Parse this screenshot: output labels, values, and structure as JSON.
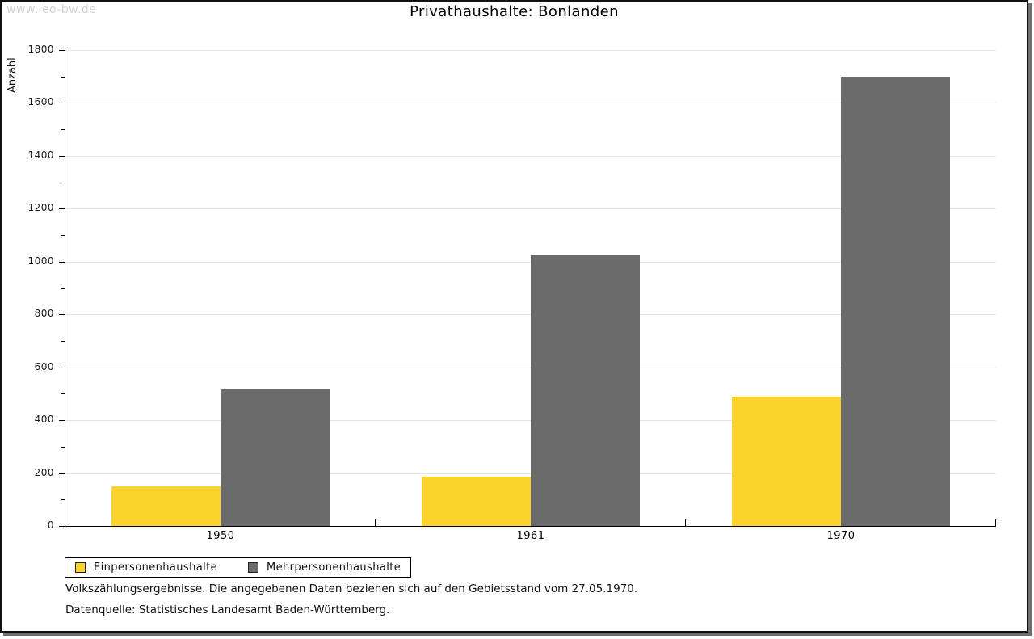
{
  "watermark": "www.leo-bw.de",
  "chart_data": {
    "type": "bar",
    "title": "Privathaushalte: Bonlanden",
    "ylabel": "Anzahl",
    "xlabel": "",
    "categories": [
      "1950",
      "1961",
      "1970"
    ],
    "series": [
      {
        "name": "Einpersonenhaushalte",
        "color": "#fcd32d",
        "values": [
          150,
          185,
          490
        ]
      },
      {
        "name": "Mehrpersonenhaushalte",
        "color": "#6b6b6b",
        "values": [
          515,
          1025,
          1700
        ]
      }
    ],
    "ylim": [
      0,
      1800
    ],
    "ytick_interval": 200,
    "yminor_interval": 100,
    "grid": "horizontal",
    "legend_position": "bottom-left"
  },
  "footnotes": [
    "Volkszählungsergebnisse. Die angegebenen Daten beziehen sich auf den Gebietsstand vom 27.05.1970.",
    "Datenquelle: Statistisches Landesamt Baden-Württemberg."
  ]
}
